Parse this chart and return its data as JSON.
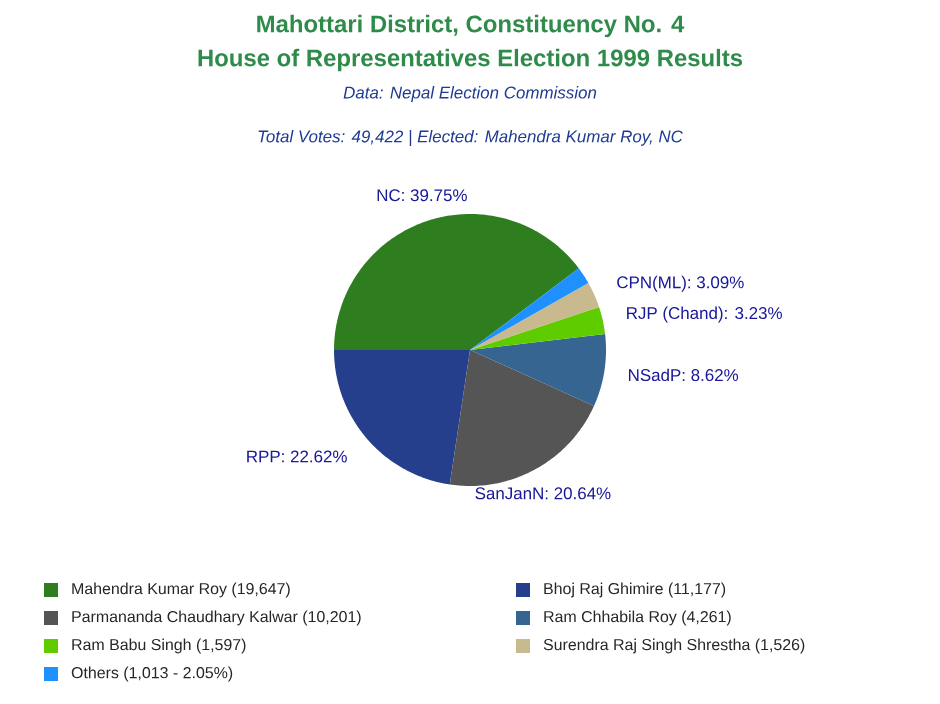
{
  "chart_data": {
    "type": "pie",
    "title": "Mahottari District, Constituency No. 4",
    "subtitle": "House of Representatives Election 1999 Results",
    "annotations": [
      "Data: Nepal Election Commission",
      "Total Votes: 49,422 | Elected: Mahendra Kumar Roy, NC"
    ],
    "categories": [
      "Mahendra Kumar Roy (19,647)",
      "Bhoj Raj Ghimire (11,177)",
      "Parmananda Chaudhary Kalwar (10,201)",
      "Ram Chhabila Roy (4,261)",
      "Ram Babu Singh (1,597)",
      "Surendra Raj Singh Shrestha (1,526)",
      "Others (1,013 - 2.05%)"
    ],
    "values": [
      39.75,
      22.62,
      20.64,
      8.62,
      3.23,
      3.09,
      2.05
    ],
    "value_labels": [
      "NC: 39.75%",
      "RPP: 22.62%",
      "SanJanN: 20.64%",
      "NSadP: 8.62%",
      "RJP (Chand): 3.23%",
      "CPN(ML): 3.09%",
      null
    ],
    "colors": [
      "#2e7d1e",
      "#263f8c",
      "#555555",
      "#366591",
      "#5fcc00",
      "#c9b98f",
      "#1e90ff"
    ],
    "legend": "bottom"
  }
}
